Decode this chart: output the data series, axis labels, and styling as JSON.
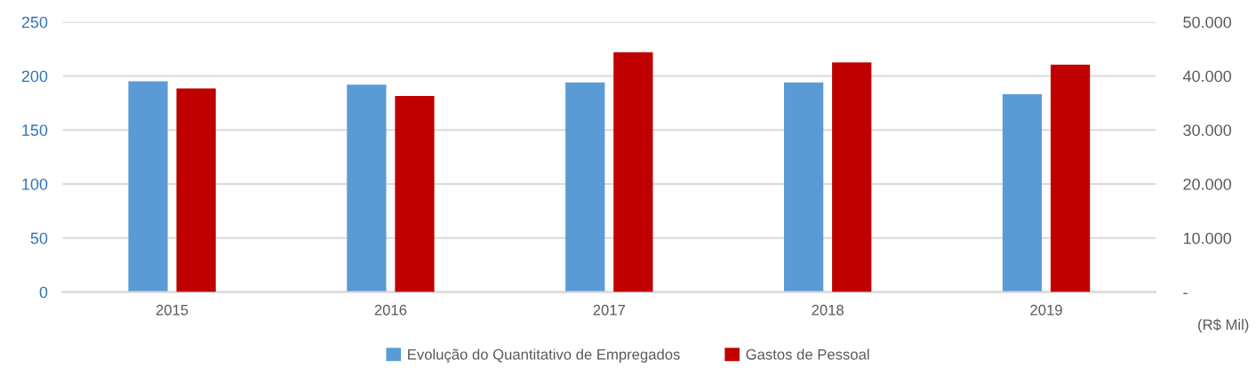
{
  "chart_data": {
    "type": "bar",
    "categories": [
      "2015",
      "2016",
      "2017",
      "2018",
      "2019"
    ],
    "series": [
      {
        "name": "Evolução do Quantitativo de Empregados",
        "color": "#5b9bd5",
        "values": [
          195,
          192,
          194,
          194,
          183
        ]
      },
      {
        "name": "Gastos de Pessoal",
        "color": "#c00000",
        "axis": "y2",
        "values": [
          37700,
          36300,
          44400,
          42500,
          42100
        ]
      }
    ],
    "ylim": [
      0,
      250
    ],
    "yticks": [
      0,
      50,
      100,
      150,
      200,
      250
    ],
    "y2lim": [
      0,
      50000
    ],
    "y2ticks": [
      {
        "value": 0,
        "label": "-"
      },
      {
        "value": 10000,
        "label": "10.000"
      },
      {
        "value": 20000,
        "label": "20.000"
      },
      {
        "value": 30000,
        "label": "30.000"
      },
      {
        "value": 40000,
        "label": "40.000"
      },
      {
        "value": 50000,
        "label": "50.000"
      }
    ],
    "y2label": "(R$ Mil)",
    "grid": "y",
    "legend": "bottom"
  }
}
